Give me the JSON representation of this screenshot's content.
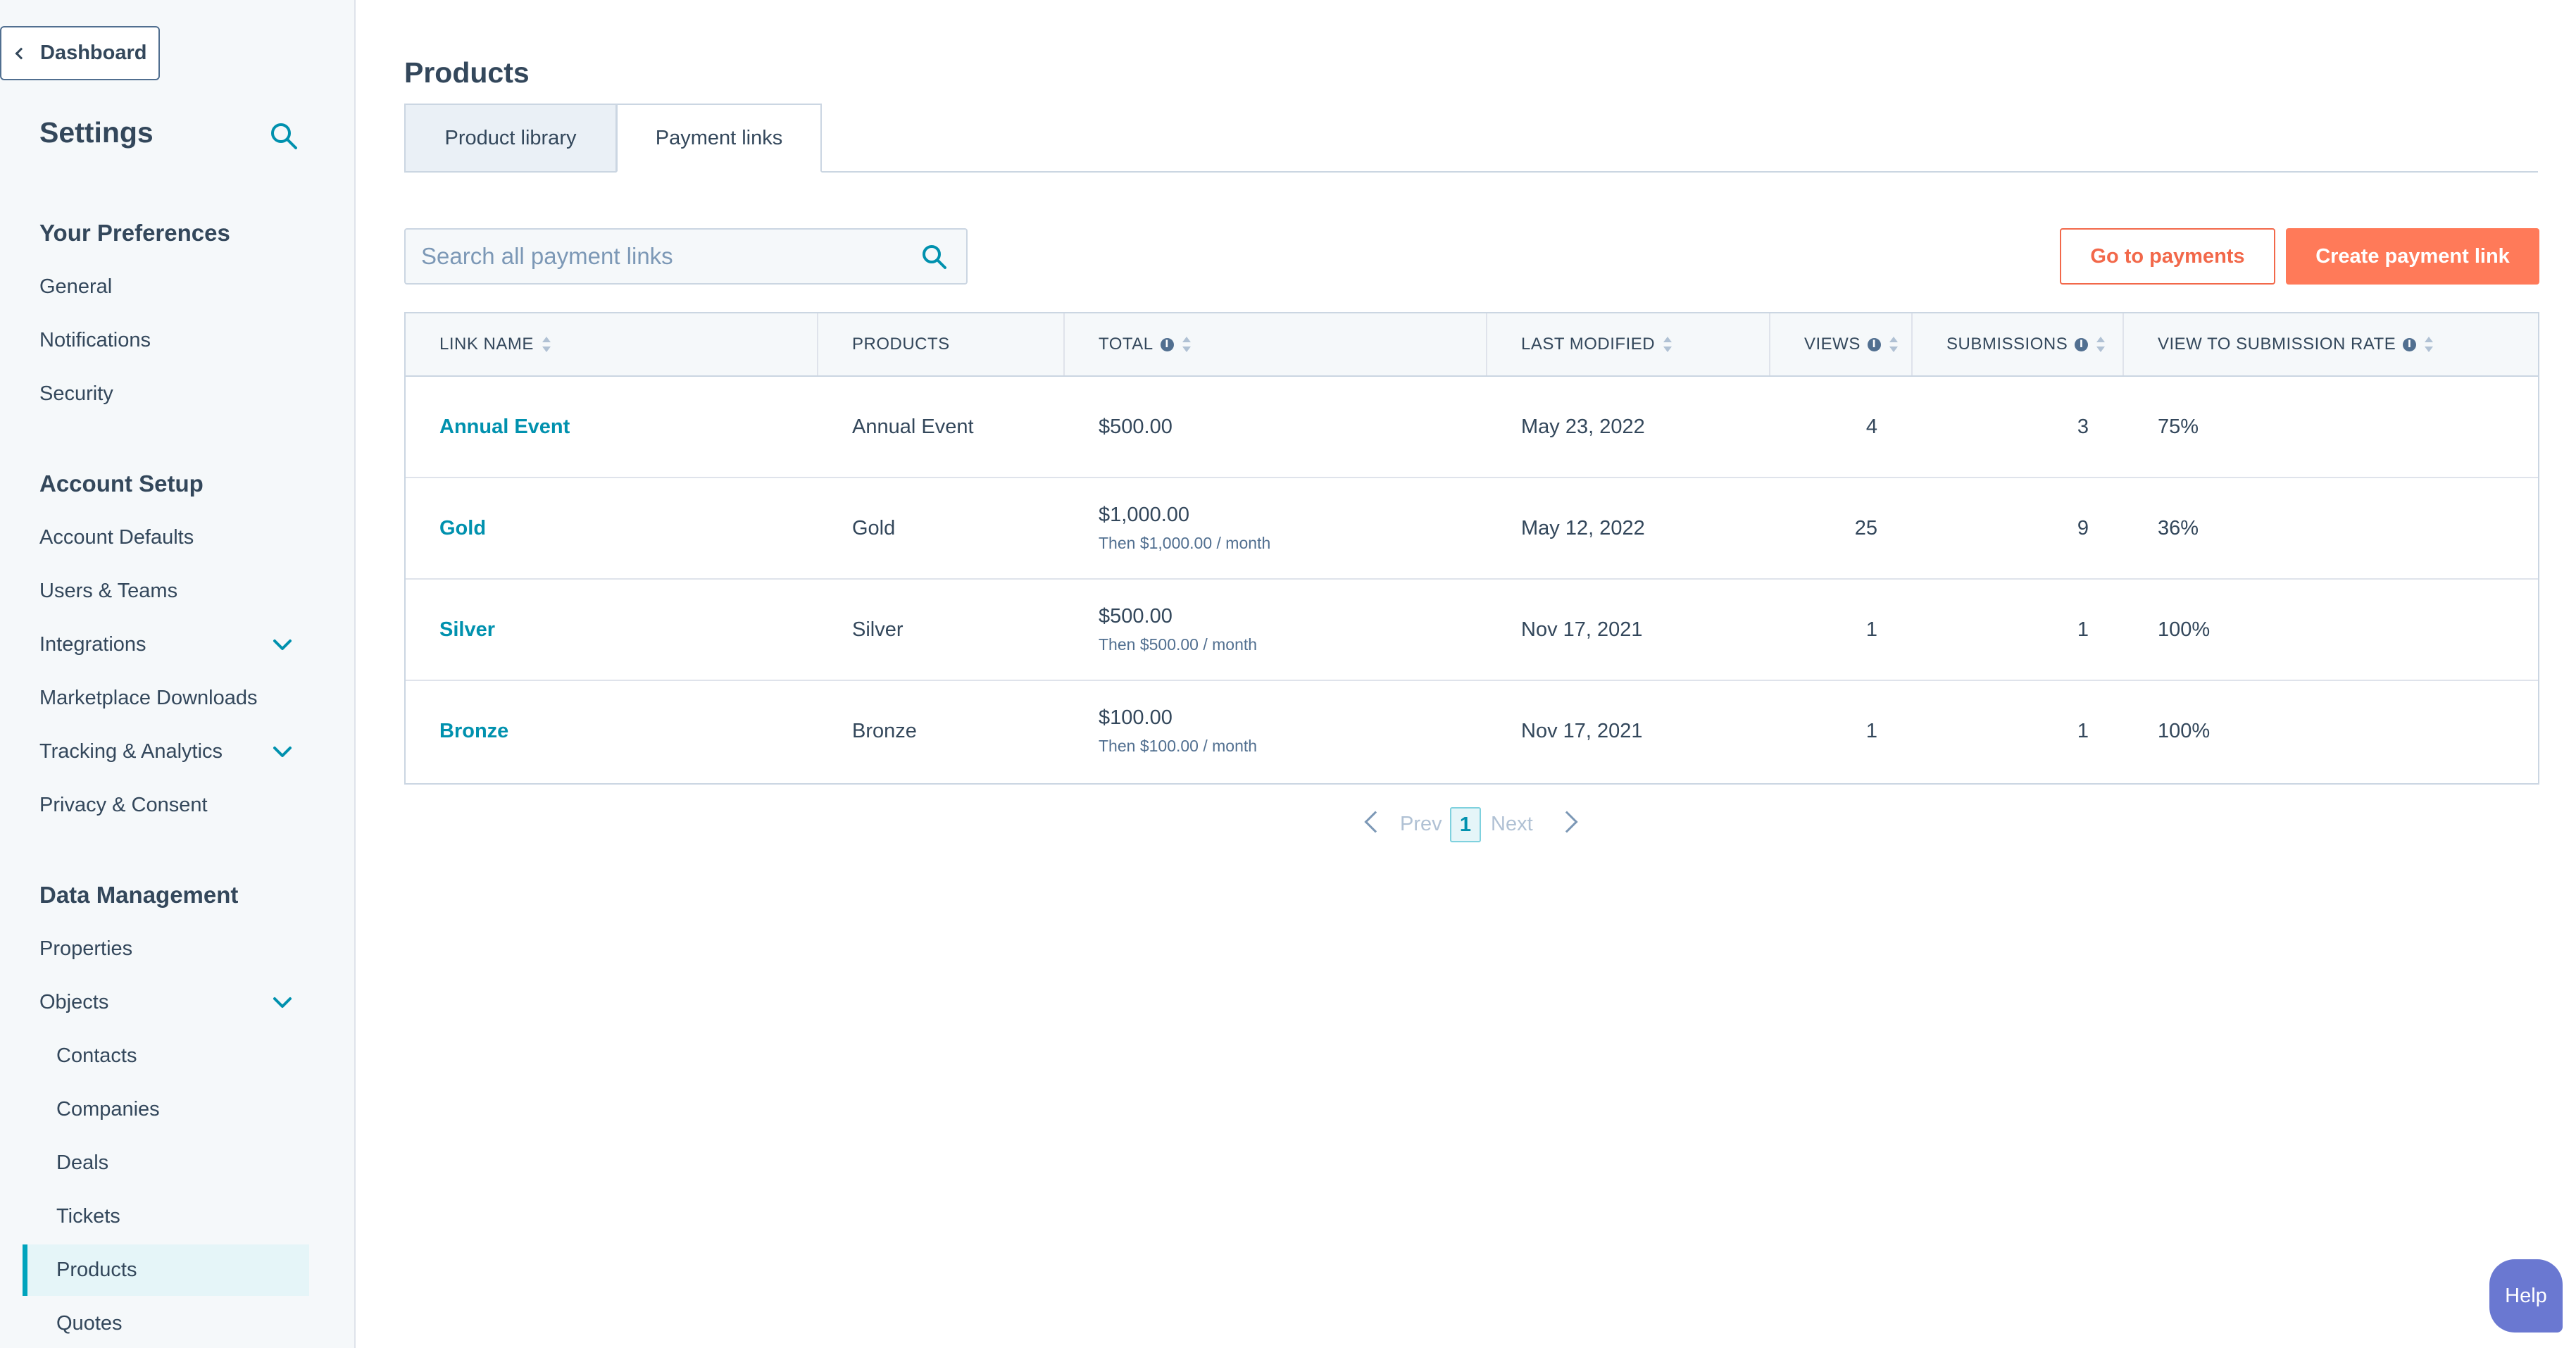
{
  "sidebar": {
    "back_label": "Dashboard",
    "title": "Settings",
    "sections": {
      "preferences": "Your Preferences",
      "account_setup": "Account Setup",
      "data_management": "Data Management"
    },
    "items": {
      "general": "General",
      "notifications": "Notifications",
      "security": "Security",
      "account_defaults": "Account Defaults",
      "users_teams": "Users & Teams",
      "integrations": "Integrations",
      "marketplace": "Marketplace Downloads",
      "tracking": "Tracking & Analytics",
      "privacy": "Privacy & Consent",
      "properties": "Properties",
      "objects": "Objects",
      "contacts": "Contacts",
      "companies": "Companies",
      "deals": "Deals",
      "tickets": "Tickets",
      "products": "Products",
      "quotes": "Quotes"
    },
    "active_item": "Products"
  },
  "main": {
    "title": "Products",
    "tabs": [
      {
        "label": "Product library"
      },
      {
        "label": "Payment links"
      }
    ],
    "active_tab": "Payment links",
    "search_placeholder": "Search all payment links",
    "go_to_payments": "Go to payments",
    "create_link": "Create payment link"
  },
  "table": {
    "headers": {
      "link_name": "LINK NAME",
      "products": "PRODUCTS",
      "total": "TOTAL",
      "last_modified": "LAST MODIFIED",
      "views": "VIEWS",
      "submissions": "SUBMISSIONS",
      "rate": "VIEW TO SUBMISSION RATE"
    },
    "rows": [
      {
        "name": "Annual Event",
        "product": "Annual Event",
        "total": "$500.00",
        "recurring": "",
        "modified": "May 23, 2022",
        "views": "4",
        "submissions": "3",
        "rate": "75%"
      },
      {
        "name": "Gold",
        "product": "Gold",
        "total": "$1,000.00",
        "recurring": "Then $1,000.00 / month",
        "modified": "May 12, 2022",
        "views": "25",
        "submissions": "9",
        "rate": "36%"
      },
      {
        "name": "Silver",
        "product": "Silver",
        "total": "$500.00",
        "recurring": "Then $500.00 / month",
        "modified": "Nov 17, 2021",
        "views": "1",
        "submissions": "1",
        "rate": "100%"
      },
      {
        "name": "Bronze",
        "product": "Bronze",
        "total": "$100.00",
        "recurring": "Then $100.00 / month",
        "modified": "Nov 17, 2021",
        "views": "1",
        "submissions": "1",
        "rate": "100%"
      }
    ]
  },
  "pagination": {
    "prev": "Prev",
    "page": "1",
    "next": "Next"
  },
  "help_label": "Help",
  "colors": {
    "accent": "#0091ae",
    "primary_button": "#ff7a59",
    "outline_button": "#f2684a",
    "sidebar_bg": "#f5f8fa",
    "help_button": "#6a78d1"
  }
}
